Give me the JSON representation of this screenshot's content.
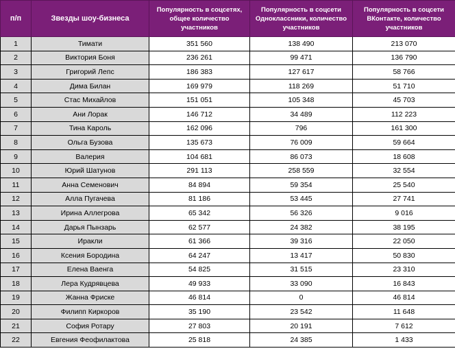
{
  "headers": {
    "num": "п/п",
    "name": "Звезды шоу-бизнеса",
    "total": "Популярность в соцсетях, общее количество участников",
    "ok": "Популярность в соцсети Одноклассники, количество участников",
    "vk": "Популярность в соцсети ВКонтакте, количество участников"
  },
  "rows": [
    {
      "n": "1",
      "name": "Тимати",
      "total": "351 560",
      "ok": "138 490",
      "vk": "213 070"
    },
    {
      "n": "2",
      "name": "Виктория Боня",
      "total": "236 261",
      "ok": "99 471",
      "vk": "136 790"
    },
    {
      "n": "3",
      "name": "Григорий Лепс",
      "total": "186 383",
      "ok": "127 617",
      "vk": "58 766"
    },
    {
      "n": "4",
      "name": "Дима Билан",
      "total": "169 979",
      "ok": "118 269",
      "vk": "51 710"
    },
    {
      "n": "5",
      "name": "Стас Михайлов",
      "total": "151 051",
      "ok": "105 348",
      "vk": "45 703"
    },
    {
      "n": "6",
      "name": "Ани Лорак",
      "total": "146 712",
      "ok": "34 489",
      "vk": "112 223"
    },
    {
      "n": "7",
      "name": "Тина Кароль",
      "total": "162 096",
      "ok": "796",
      "vk": "161 300"
    },
    {
      "n": "8",
      "name": "Ольга Бузова",
      "total": "135 673",
      "ok": "76 009",
      "vk": "59 664"
    },
    {
      "n": "9",
      "name": "Валерия",
      "total": "104 681",
      "ok": "86 073",
      "vk": "18 608"
    },
    {
      "n": "10",
      "name": "Юрий Шатунов",
      "total": "291 113",
      "ok": "258 559",
      "vk": "32 554"
    },
    {
      "n": "11",
      "name": "Анна Семенович",
      "total": "84 894",
      "ok": "59 354",
      "vk": "25 540"
    },
    {
      "n": "12",
      "name": "Алла Пугачева",
      "total": "81 186",
      "ok": "53 445",
      "vk": "27 741"
    },
    {
      "n": "13",
      "name": "Ирина Аллегрова",
      "total": "65 342",
      "ok": "56 326",
      "vk": "9 016"
    },
    {
      "n": "14",
      "name": "Дарья Пынзарь",
      "total": "62 577",
      "ok": "24 382",
      "vk": "38 195"
    },
    {
      "n": "15",
      "name": "Иракли",
      "total": "61 366",
      "ok": "39 316",
      "vk": "22 050"
    },
    {
      "n": "16",
      "name": "Ксения Бородина",
      "total": "64 247",
      "ok": "13 417",
      "vk": "50 830"
    },
    {
      "n": "17",
      "name": "Елена Ваенга",
      "total": "54 825",
      "ok": "31 515",
      "vk": "23 310"
    },
    {
      "n": "18",
      "name": "Лера Кудрявцева",
      "total": "49 933",
      "ok": "33 090",
      "vk": "16 843"
    },
    {
      "n": "19",
      "name": "Жанна Фриске",
      "total": "46 814",
      "ok": "0",
      "vk": "46 814"
    },
    {
      "n": "20",
      "name": "Филипп Киркоров",
      "total": "35 190",
      "ok": "23 542",
      "vk": "11 648"
    },
    {
      "n": "21",
      "name": "София Ротару",
      "total": "27 803",
      "ok": "20 191",
      "vk": "7 612"
    },
    {
      "n": "22",
      "name": "Евгения Феофилактова",
      "total": "25 818",
      "ok": "24 385",
      "vk": "1 433"
    }
  ]
}
